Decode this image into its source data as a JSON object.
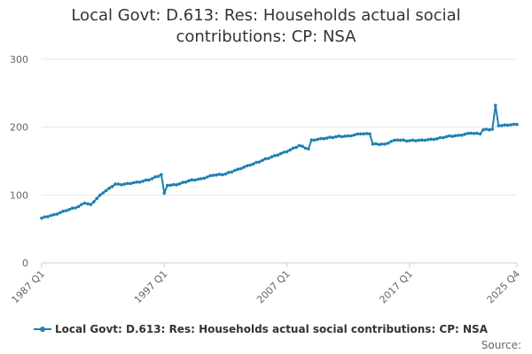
{
  "chart_data": {
    "type": "line",
    "title": "Local Govt: D.613: Res: Households actual social contributions: CP: NSA",
    "xlabel": "",
    "ylabel": "",
    "ylim": [
      0,
      300
    ],
    "y_ticks": [
      0,
      100,
      200,
      300
    ],
    "x_ticks": [
      "1987 Q1",
      "1997 Q1",
      "2007 Q1",
      "2017 Q1",
      "2025 Q4"
    ],
    "grid": "horizontal",
    "legend_position": "bottom",
    "colors": {
      "series": "#1f7fb3"
    },
    "series": [
      {
        "name": "Local Govt: D.613: Res: Households actual social contributions: CP: NSA",
        "x_range": [
          "1987 Q1",
          "2025 Q4"
        ],
        "x_key_points": [
          [
            "1987 Q1",
            66
          ],
          [
            "1988 Q1",
            71
          ],
          [
            "1989 Q1",
            77
          ],
          [
            "1990 Q1",
            83
          ],
          [
            "1990 Q3",
            88
          ],
          [
            "1991 Q1",
            86
          ],
          [
            "1991 Q3",
            95
          ],
          [
            "1992 Q1",
            103
          ],
          [
            "1992 Q3",
            110
          ],
          [
            "1993 Q1",
            116
          ],
          [
            "1993 Q3",
            115
          ],
          [
            "1994 Q1",
            117
          ],
          [
            "1995 Q1",
            119
          ],
          [
            "1996 Q1",
            124
          ],
          [
            "1996 Q4",
            130
          ],
          [
            "1997 Q1",
            103
          ],
          [
            "1997 Q2",
            114
          ],
          [
            "1998 Q1",
            115
          ],
          [
            "1999 Q1",
            121
          ],
          [
            "2000 Q1",
            124
          ],
          [
            "2001 Q1",
            129
          ],
          [
            "2002 Q1",
            131
          ],
          [
            "2003 Q1",
            138
          ],
          [
            "2004 Q1",
            144
          ],
          [
            "2005 Q1",
            151
          ],
          [
            "2006 Q1",
            158
          ],
          [
            "2007 Q1",
            164
          ],
          [
            "2008 Q1",
            173
          ],
          [
            "2008 Q4",
            168
          ],
          [
            "2009 Q1",
            181
          ],
          [
            "2010 Q1",
            183
          ],
          [
            "2011 Q1",
            186
          ],
          [
            "2012 Q1",
            187
          ],
          [
            "2013 Q1",
            190
          ],
          [
            "2013 Q4",
            190
          ],
          [
            "2014 Q1",
            175
          ],
          [
            "2015 Q1",
            175
          ],
          [
            "2015 Q3",
            179
          ],
          [
            "2016 Q1",
            181
          ],
          [
            "2017 Q1",
            180
          ],
          [
            "2018 Q1",
            181
          ],
          [
            "2019 Q1",
            182
          ],
          [
            "2020 Q1",
            186
          ],
          [
            "2021 Q1",
            188
          ],
          [
            "2022 Q1",
            191
          ],
          [
            "2022 Q4",
            190
          ],
          [
            "2023 Q1",
            196
          ],
          [
            "2023 Q4",
            197
          ],
          [
            "2024 Q1",
            232
          ],
          [
            "2024 Q2",
            202
          ],
          [
            "2025 Q1",
            203
          ],
          [
            "2025 Q4",
            204
          ]
        ]
      }
    ]
  },
  "source": "Source:"
}
